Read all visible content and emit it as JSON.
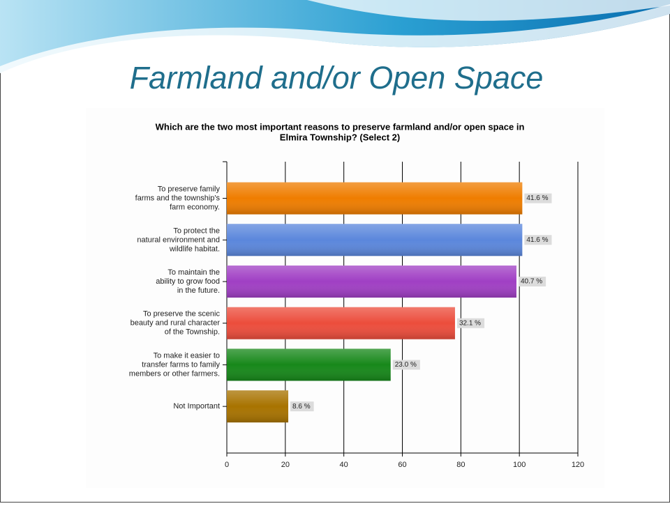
{
  "slide_title": "Farmland and/or Open Space",
  "chart_data": {
    "type": "bar",
    "orientation": "horizontal",
    "title": [
      "Which are the two most important reasons to preserve farmland and/or open space in",
      "Elmira Township? (Select 2)"
    ],
    "categories": [
      [
        "To preserve family",
        "farms and the township's",
        "farm economy."
      ],
      [
        "To protect the",
        "natural environment and",
        "wildlife habitat."
      ],
      [
        "To maintain the",
        "ability to grow food",
        "in the future."
      ],
      [
        "To preserve the scenic",
        "beauty and rural character",
        "of the Township."
      ],
      [
        "To make it easier to",
        "transfer farms to family",
        "members or other farmers."
      ],
      [
        "Not Important"
      ]
    ],
    "values": [
      101,
      101,
      99,
      78,
      56,
      21
    ],
    "value_labels": [
      "41.6 %",
      "41.6 %",
      "40.7 %",
      "32.1 %",
      "23.0 %",
      "8.6 %"
    ],
    "colors": [
      "#ef7d00",
      "#5b87dc",
      "#a03fc4",
      "#ec4d3c",
      "#17881a",
      "#a87300"
    ],
    "xlim": [
      0,
      120
    ],
    "xticks": [
      0,
      20,
      40,
      60,
      80,
      100,
      120
    ],
    "grid": true
  }
}
